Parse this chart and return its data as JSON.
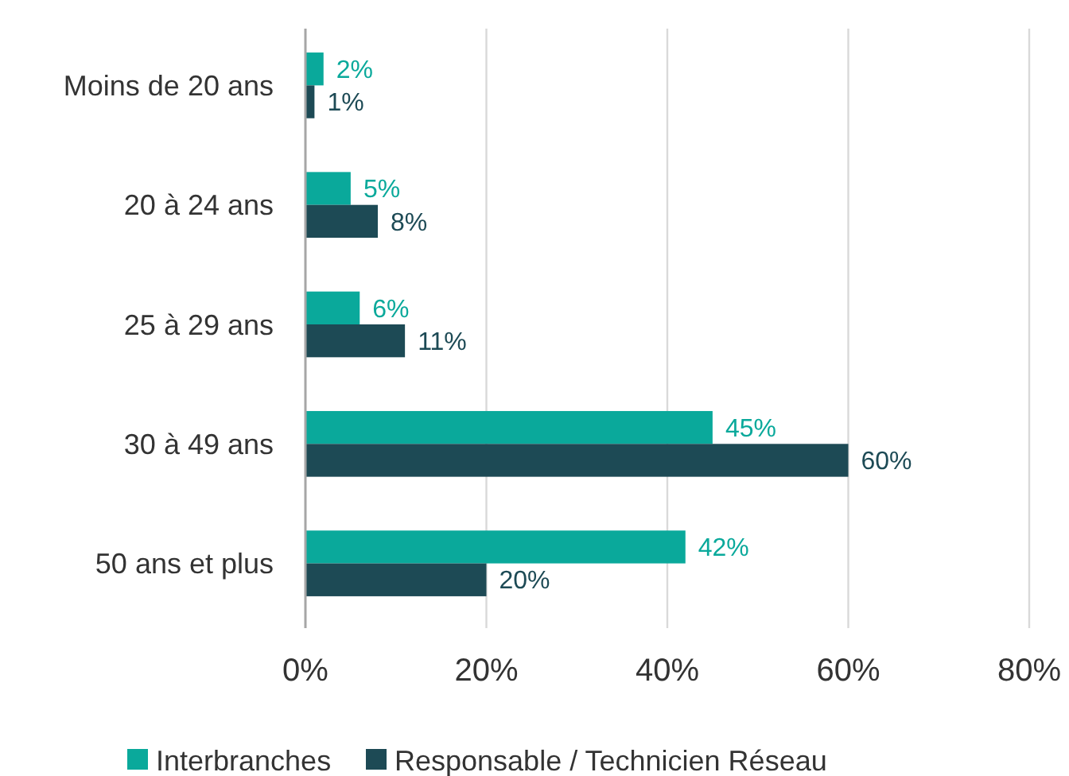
{
  "chart_data": {
    "type": "bar",
    "orientation": "horizontal",
    "categories": [
      "Moins de 20 ans",
      "20 à 24 ans",
      "25 à 29 ans",
      "30 à 49 ans",
      "50 ans et plus"
    ],
    "series": [
      {
        "name": "Interbranches",
        "color": "#0aa99b",
        "values": [
          2,
          5,
          6,
          45,
          42
        ],
        "value_labels": [
          "2%",
          "5%",
          "6%",
          "45%",
          "42%"
        ]
      },
      {
        "name": "Responsable / Technicien Réseau",
        "color": "#1d4a55",
        "values": [
          1,
          8,
          11,
          60,
          20
        ],
        "value_labels": [
          "1%",
          "8%",
          "11%",
          "60%",
          "20%"
        ]
      }
    ],
    "xlim": [
      0,
      80
    ],
    "xticks": [
      {
        "value": 0,
        "label": "0%"
      },
      {
        "value": 20,
        "label": "20%"
      },
      {
        "value": 40,
        "label": "40%"
      },
      {
        "value": 60,
        "label": "60%"
      },
      {
        "value": 80,
        "label": "80%"
      }
    ],
    "grid": "x",
    "legend": "bottom"
  }
}
